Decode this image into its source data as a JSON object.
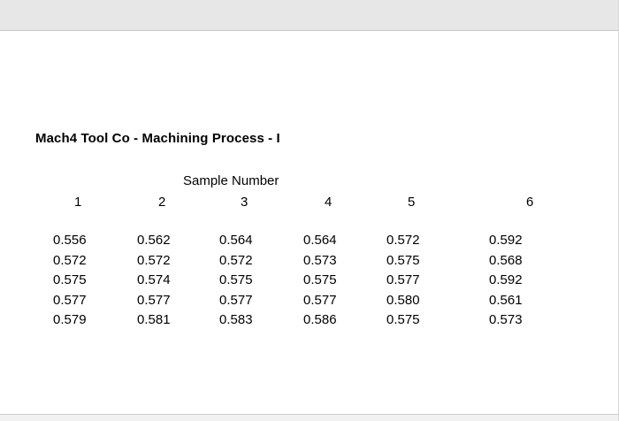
{
  "page": {
    "title": "Mach4 Tool Co - Machining Process - I",
    "table": {
      "header": "Sample Number",
      "columns": [
        "1",
        "2",
        "3",
        "4",
        "5",
        "6"
      ],
      "rows": [
        [
          "0.556",
          "0.562",
          "0.564",
          "0.564",
          "0.572",
          "0.592"
        ],
        [
          "0.572",
          "0.572",
          "0.572",
          "0.573",
          "0.575",
          "0.568"
        ],
        [
          "0.575",
          "0.574",
          "0.575",
          "0.575",
          "0.577",
          "0.592"
        ],
        [
          "0.577",
          "0.577",
          "0.577",
          "0.577",
          "0.580",
          "0.561"
        ],
        [
          "0.579",
          "0.581",
          "0.583",
          "0.586",
          "0.575",
          "0.573"
        ]
      ]
    }
  }
}
